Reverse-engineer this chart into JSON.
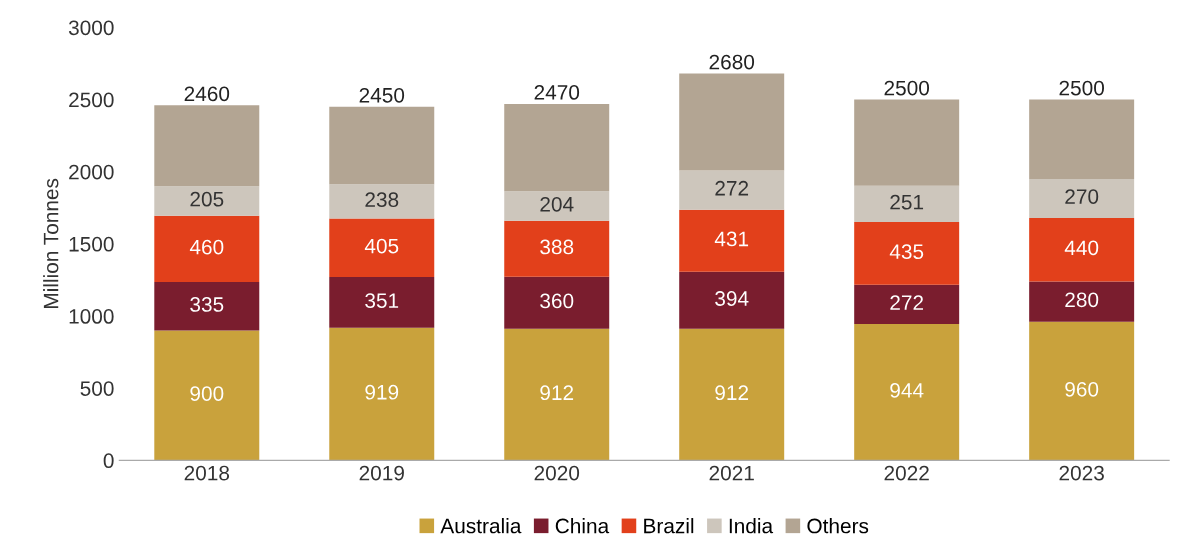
{
  "chart_data": {
    "type": "bar",
    "stacked": true,
    "ylabel": "Million Tonnes",
    "categories": [
      "2018",
      "2019",
      "2020",
      "2021",
      "2022",
      "2023"
    ],
    "series": [
      {
        "name": "Australia",
        "color": "#c9a23c",
        "values": [
          900,
          919,
          912,
          912,
          944,
          960
        ],
        "value_labels": [
          "900",
          "919",
          "912",
          "912",
          "944",
          "960"
        ]
      },
      {
        "name": "China",
        "color": "#7a1d2e",
        "values": [
          335,
          351,
          360,
          394,
          272,
          280
        ],
        "value_labels": [
          "335",
          "351",
          "360",
          "394",
          "272",
          "280"
        ]
      },
      {
        "name": "Brazil",
        "color": "#e2401b",
        "values": [
          460,
          405,
          388,
          431,
          435,
          440
        ],
        "value_labels": [
          "460",
          "405",
          "388",
          "431",
          "435",
          "440"
        ]
      },
      {
        "name": "India",
        "color": "#cdc6bc",
        "values": [
          205,
          238,
          204,
          272,
          251,
          270
        ],
        "value_labels": [
          "205",
          "238",
          "204",
          "272",
          "251",
          "270"
        ]
      },
      {
        "name": "Others",
        "color": "#b3a593",
        "values": [
          560,
          537,
          606,
          671,
          598,
          550
        ],
        "value_labels": [
          null,
          null,
          null,
          null,
          null,
          null
        ]
      }
    ],
    "totals": [
      "2460",
      "2450",
      "2470",
      "2680",
      "2500",
      "2500"
    ],
    "ylim": [
      0,
      3000
    ],
    "yticks": [
      0,
      500,
      1000,
      1500,
      2000,
      2500,
      3000
    ],
    "grid": false,
    "legend": "bottom"
  }
}
